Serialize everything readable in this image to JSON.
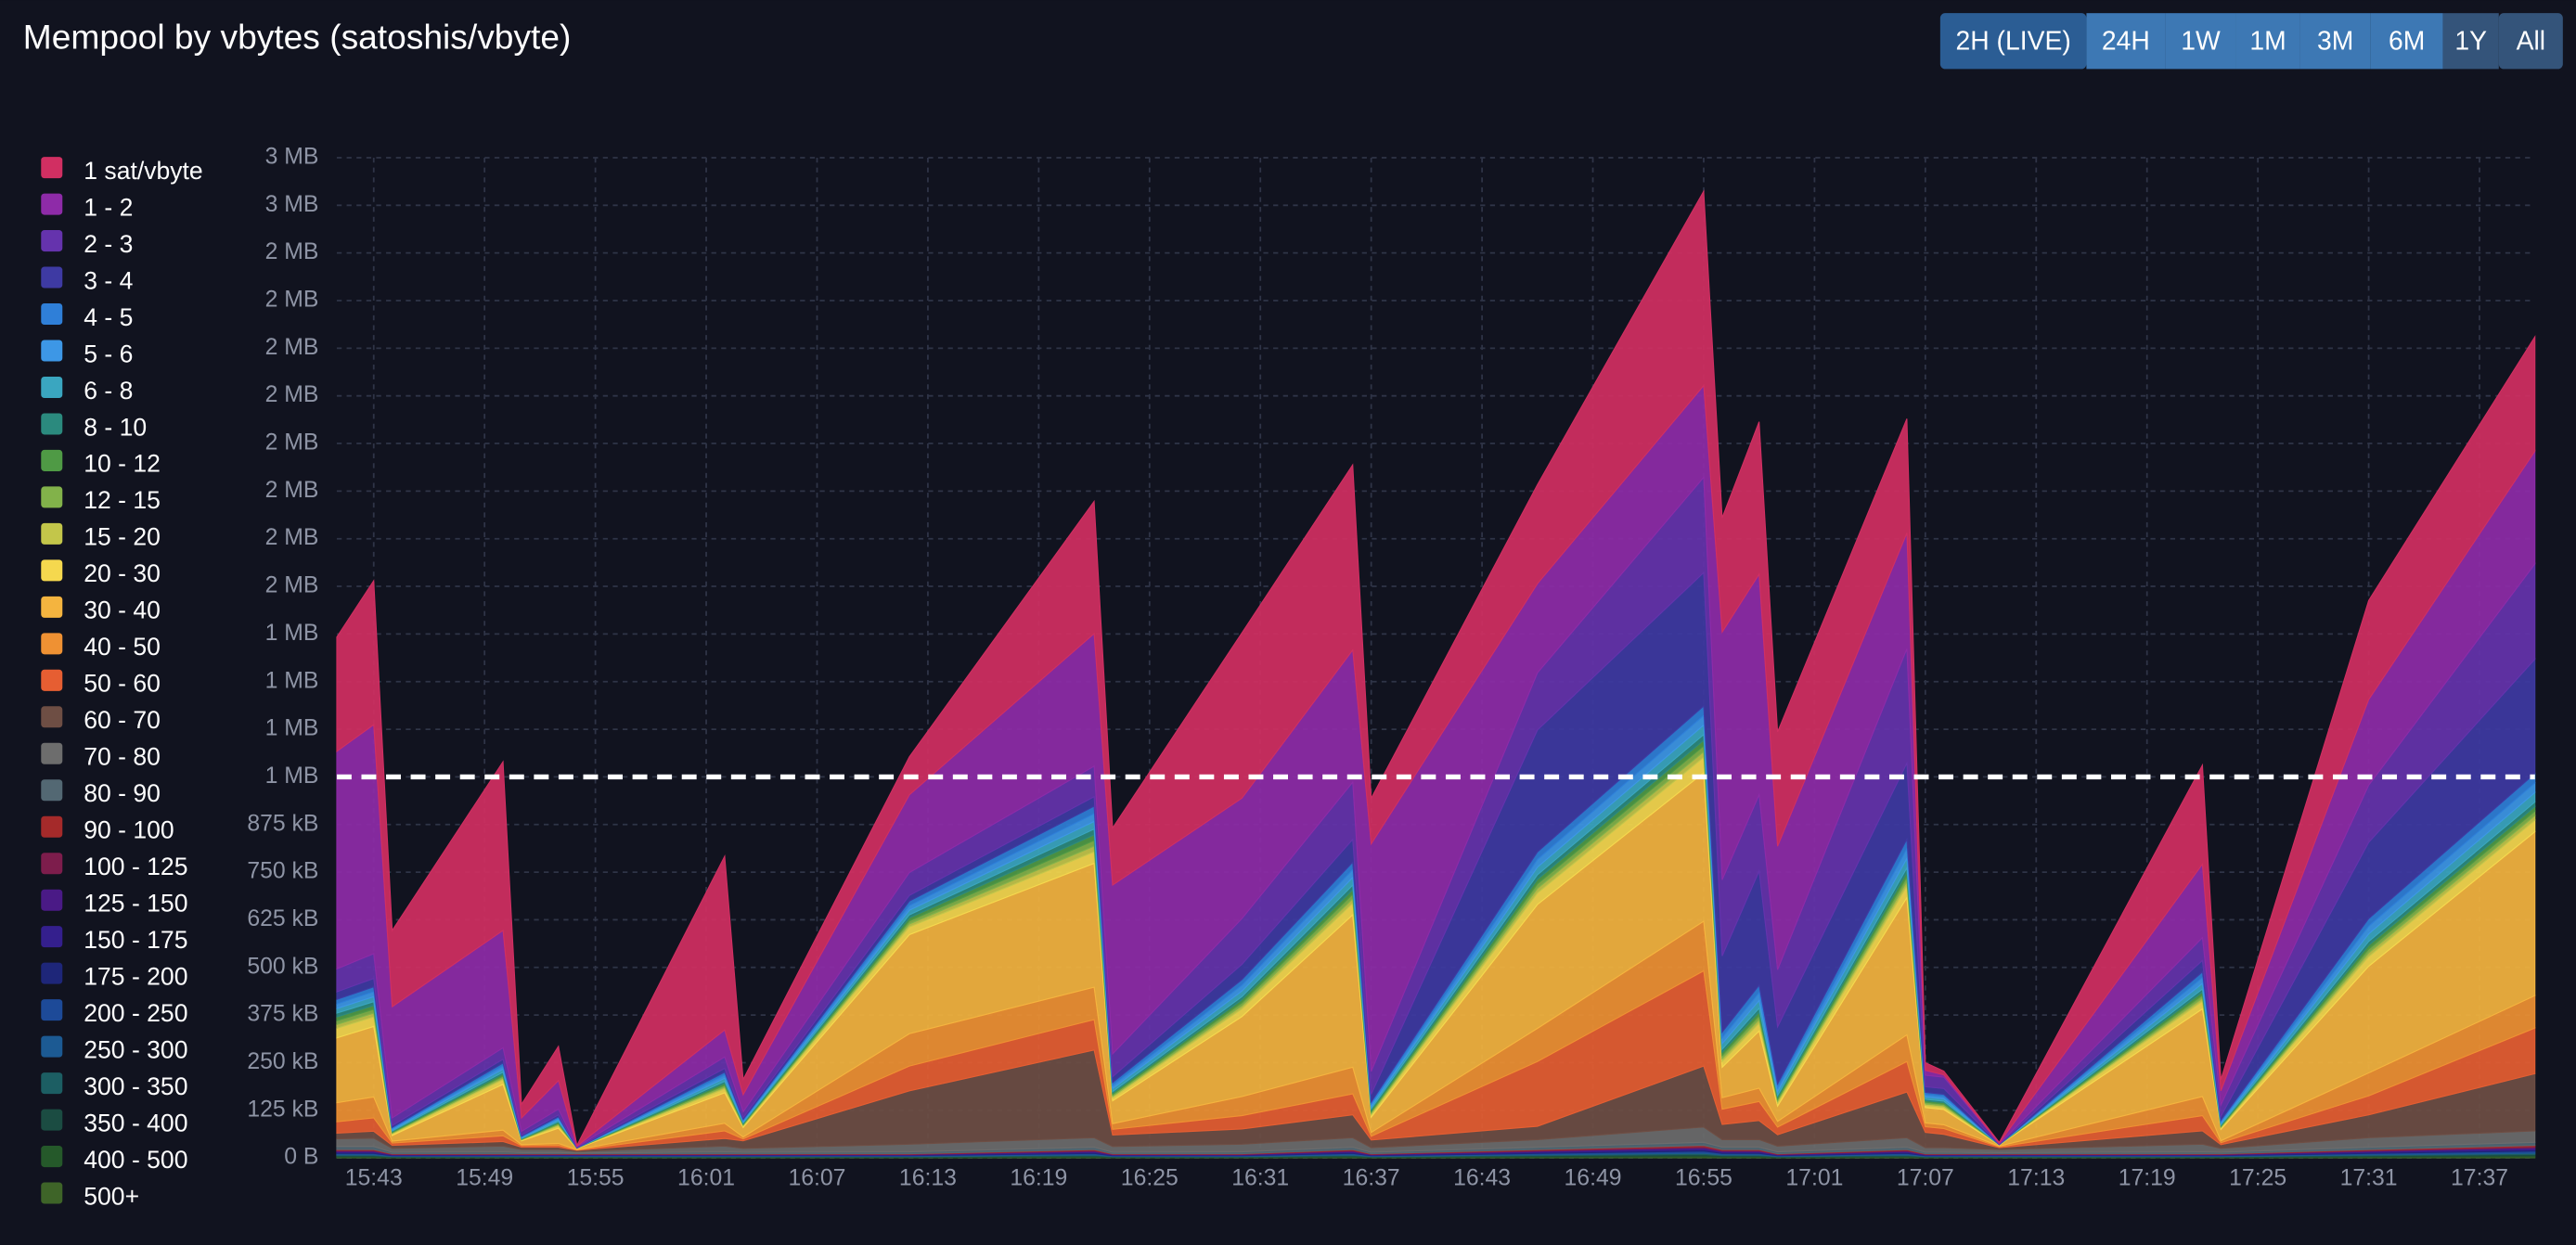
{
  "toolbar": {
    "buttons": [
      "2H (LIVE)",
      "24H",
      "1W",
      "1M",
      "3M",
      "6M",
      "1Y",
      "All"
    ]
  },
  "chart_data": {
    "type": "stacked-area",
    "title": "Mempool by vbytes (satoshis/vbyte)",
    "x": [
      "15:41",
      "15:43",
      "15:44",
      "15:50",
      "15:51",
      "15:53",
      "15:54",
      "16:02",
      "16:03",
      "16:12",
      "16:22",
      "16:23",
      "16:30",
      "16:36",
      "16:37",
      "16:46",
      "16:55",
      "16:56",
      "16:58",
      "16:59",
      "17:06",
      "17:07",
      "17:08",
      "17:11",
      "17:22",
      "17:23",
      "17:31",
      "17:40"
    ],
    "xlim": [
      "15:41",
      "17:40"
    ],
    "xticks": [
      "15:43",
      "15:49",
      "15:55",
      "16:01",
      "16:07",
      "16:13",
      "16:19",
      "16:25",
      "16:31",
      "16:37",
      "16:43",
      "16:49",
      "16:55",
      "17:01",
      "17:07",
      "17:13",
      "17:19",
      "17:25",
      "17:31",
      "17:37"
    ],
    "ylim": [
      0,
      2625
    ],
    "yticks": [
      {
        "value": 0,
        "label": "0 B"
      },
      {
        "value": 125,
        "label": "125 kB"
      },
      {
        "value": 250,
        "label": "250 kB"
      },
      {
        "value": 375,
        "label": "375 kB"
      },
      {
        "value": 500,
        "label": "500 kB"
      },
      {
        "value": 625,
        "label": "625 kB"
      },
      {
        "value": 750,
        "label": "750 kB"
      },
      {
        "value": 875,
        "label": "875 kB"
      },
      {
        "value": 1000,
        "label": "1 MB"
      },
      {
        "value": 1125,
        "label": "1 MB"
      },
      {
        "value": 1250,
        "label": "1 MB"
      },
      {
        "value": 1375,
        "label": "1 MB"
      },
      {
        "value": 1500,
        "label": "2 MB"
      },
      {
        "value": 1625,
        "label": "2 MB"
      },
      {
        "value": 1750,
        "label": "2 MB"
      },
      {
        "value": 1875,
        "label": "2 MB"
      },
      {
        "value": 2000,
        "label": "2 MB"
      },
      {
        "value": 2125,
        "label": "2 MB"
      },
      {
        "value": 2250,
        "label": "2 MB"
      },
      {
        "value": 2375,
        "label": "2 MB"
      },
      {
        "value": 2500,
        "label": "3 MB"
      },
      {
        "value": 2625,
        "label": "3 MB"
      }
    ],
    "grid": true,
    "mark_line": 1000,
    "series": [
      {
        "name": "1 sat/vbyte",
        "color": "#d12f62",
        "values": [
          300,
          378,
          200,
          443,
          36,
          90,
          2,
          456,
          40,
          100,
          347,
          150,
          434,
          486,
          120,
          260,
          510,
          300,
          400,
          300,
          300,
          20,
          10,
          2,
          260,
          30,
          260,
          300
        ]
      },
      {
        "name": "1 - 2",
        "color": "#8e2ba8",
        "values": [
          571,
          601,
          292,
          308,
          35,
          75,
          2,
          71,
          45,
          204,
          348,
          443,
          316,
          347,
          597,
          234,
          241,
          650,
          579,
          324,
          304,
          13,
          6,
          2,
          193,
          37,
          225,
          296
        ]
      },
      {
        "name": "2 - 3",
        "color": "#6533ad",
        "values": [
          60,
          65,
          20,
          30,
          10,
          15,
          2,
          30,
          15,
          60,
          80,
          60,
          120,
          150,
          60,
          150,
          250,
          200,
          200,
          150,
          300,
          30,
          30,
          1,
          60,
          30,
          150,
          250
        ]
      },
      {
        "name": "3 - 4",
        "color": "#3e3aa3",
        "values": [
          20,
          22,
          5,
          10,
          3,
          5,
          1,
          10,
          5,
          15,
          25,
          15,
          40,
          60,
          20,
          320,
          350,
          200,
          300,
          150,
          200,
          15,
          15,
          1,
          30,
          10,
          200,
          300
        ]
      },
      {
        "name": "4 - 5",
        "color": "#2f7fd8",
        "values": [
          12,
          13,
          3,
          8,
          2,
          4,
          0,
          8,
          3,
          12,
          20,
          8,
          15,
          20,
          6,
          20,
          25,
          15,
          20,
          10,
          25,
          6,
          6,
          0,
          15,
          4,
          20,
          25
        ]
      },
      {
        "name": "5 - 6",
        "color": "#3d97e6",
        "values": [
          12,
          13,
          3,
          8,
          2,
          4,
          0,
          8,
          3,
          12,
          20,
          8,
          15,
          20,
          6,
          20,
          25,
          15,
          20,
          10,
          25,
          6,
          6,
          0,
          15,
          4,
          20,
          25
        ]
      },
      {
        "name": "6 - 8",
        "color": "#3aa6c0",
        "values": [
          12,
          13,
          3,
          8,
          2,
          4,
          0,
          8,
          3,
          12,
          20,
          8,
          15,
          20,
          6,
          20,
          25,
          15,
          20,
          10,
          25,
          6,
          6,
          0,
          15,
          4,
          20,
          25
        ]
      },
      {
        "name": "8 - 10",
        "color": "#2b8a7e",
        "values": [
          10,
          10,
          2,
          5,
          1,
          3,
          0,
          5,
          2,
          8,
          15,
          4,
          8,
          12,
          4,
          12,
          15,
          8,
          10,
          5,
          12,
          4,
          4,
          0,
          8,
          2,
          10,
          12
        ]
      },
      {
        "name": "10 - 12",
        "color": "#4f9a45",
        "values": [
          10,
          10,
          2,
          5,
          1,
          3,
          0,
          5,
          2,
          8,
          15,
          4,
          8,
          12,
          4,
          12,
          15,
          8,
          10,
          5,
          12,
          4,
          4,
          0,
          8,
          2,
          10,
          12
        ]
      },
      {
        "name": "12 - 15",
        "color": "#82b24a",
        "values": [
          10,
          10,
          2,
          5,
          1,
          3,
          0,
          5,
          2,
          8,
          15,
          4,
          8,
          12,
          4,
          12,
          15,
          8,
          10,
          5,
          12,
          4,
          4,
          0,
          8,
          2,
          10,
          12
        ]
      },
      {
        "name": "15 - 20",
        "color": "#c3c64a",
        "values": [
          10,
          10,
          2,
          5,
          1,
          3,
          0,
          5,
          2,
          8,
          15,
          4,
          8,
          12,
          4,
          12,
          15,
          8,
          10,
          5,
          12,
          4,
          4,
          0,
          8,
          2,
          10,
          12
        ]
      },
      {
        "name": "20 - 30",
        "color": "#f5d84e",
        "values": [
          25,
          25,
          4,
          12,
          2,
          6,
          1,
          10,
          4,
          20,
          30,
          8,
          20,
          30,
          6,
          30,
          40,
          15,
          20,
          8,
          30,
          6,
          6,
          1,
          20,
          4,
          25,
          30
        ]
      },
      {
        "name": "30 - 40",
        "color": "#f4b43f",
        "values": [
          170,
          185,
          15,
          120,
          10,
          40,
          3,
          80,
          25,
          260,
          325,
          60,
          210,
          400,
          40,
          325,
          390,
          80,
          150,
          40,
          360,
          40,
          40,
          3,
          230,
          30,
          280,
          430
        ]
      },
      {
        "name": "40 - 50",
        "color": "#ef9133",
        "values": [
          50,
          55,
          5,
          15,
          3,
          5,
          1,
          20,
          5,
          85,
          85,
          15,
          50,
          70,
          10,
          87,
          130,
          30,
          35,
          15,
          70,
          10,
          10,
          2,
          50,
          5,
          60,
          85
        ]
      },
      {
        "name": "50 - 60",
        "color": "#e65e32",
        "values": [
          30,
          35,
          6,
          15,
          4,
          5,
          1,
          20,
          5,
          65,
          80,
          15,
          35,
          55,
          10,
          170,
          250,
          40,
          50,
          20,
          80,
          15,
          15,
          2,
          40,
          5,
          50,
          120
        ]
      },
      {
        "name": "60 - 70",
        "color": "#6e4e44",
        "values": [
          15,
          18,
          8,
          12,
          6,
          6,
          3,
          20,
          20,
          140,
          230,
          30,
          40,
          60,
          20,
          35,
          160,
          40,
          50,
          30,
          120,
          40,
          35,
          5,
          35,
          10,
          60,
          150
        ]
      },
      {
        "name": "70 - 80",
        "color": "#6d6d6d",
        "values": [
          20,
          22,
          10,
          15,
          8,
          8,
          4,
          15,
          10,
          20,
          25,
          15,
          20,
          25,
          12,
          20,
          40,
          20,
          20,
          15,
          25,
          12,
          12,
          8,
          20,
          10,
          25,
          30
        ]
      },
      {
        "name": "80 - 90",
        "color": "#536873",
        "values": [
          8,
          8,
          4,
          5,
          3,
          3,
          2,
          5,
          4,
          5,
          6,
          4,
          5,
          6,
          4,
          6,
          8,
          6,
          6,
          5,
          6,
          4,
          4,
          3,
          5,
          4,
          6,
          8
        ]
      },
      {
        "name": "90 - 100",
        "color": "#a52a2a",
        "values": [
          2,
          2,
          1,
          1,
          1,
          1,
          1,
          1,
          1,
          1,
          2,
          1,
          1,
          2,
          1,
          2,
          3,
          2,
          2,
          1,
          2,
          1,
          1,
          1,
          1,
          1,
          2,
          3
        ]
      },
      {
        "name": "100 - 125",
        "color": "#7d1d4c",
        "values": [
          2,
          2,
          1,
          1,
          1,
          1,
          1,
          1,
          1,
          1,
          2,
          1,
          1,
          2,
          1,
          2,
          3,
          2,
          2,
          1,
          2,
          1,
          1,
          1,
          1,
          1,
          2,
          3
        ]
      },
      {
        "name": "125 - 150",
        "color": "#4a1a86",
        "values": [
          2,
          2,
          1,
          1,
          1,
          1,
          1,
          1,
          1,
          1,
          2,
          1,
          1,
          2,
          1,
          2,
          3,
          2,
          2,
          1,
          2,
          1,
          1,
          1,
          1,
          1,
          2,
          3
        ]
      },
      {
        "name": "150 - 175",
        "color": "#341f8d",
        "values": [
          2,
          2,
          1,
          1,
          1,
          1,
          1,
          1,
          1,
          1,
          2,
          1,
          1,
          2,
          1,
          2,
          3,
          2,
          2,
          1,
          2,
          1,
          1,
          1,
          1,
          1,
          2,
          3
        ]
      },
      {
        "name": "175 - 200",
        "color": "#1e2679",
        "values": [
          2,
          2,
          1,
          1,
          1,
          1,
          1,
          1,
          1,
          1,
          2,
          1,
          1,
          2,
          1,
          2,
          3,
          2,
          2,
          1,
          2,
          1,
          1,
          1,
          1,
          1,
          2,
          3
        ]
      },
      {
        "name": "200 - 250",
        "color": "#1d4a98",
        "values": [
          2,
          2,
          1,
          1,
          1,
          1,
          1,
          1,
          1,
          1,
          2,
          1,
          1,
          2,
          1,
          2,
          3,
          2,
          2,
          1,
          2,
          1,
          1,
          1,
          1,
          1,
          2,
          3
        ]
      },
      {
        "name": "250 - 300",
        "color": "#1c5a93",
        "values": [
          2,
          2,
          1,
          1,
          1,
          1,
          1,
          1,
          1,
          1,
          2,
          1,
          1,
          2,
          1,
          2,
          3,
          2,
          2,
          1,
          2,
          1,
          1,
          1,
          1,
          1,
          2,
          3
        ]
      },
      {
        "name": "300 - 350",
        "color": "#1c5e63",
        "values": [
          2,
          2,
          1,
          1,
          1,
          1,
          1,
          1,
          1,
          1,
          2,
          1,
          1,
          2,
          1,
          2,
          3,
          2,
          2,
          1,
          2,
          1,
          1,
          1,
          1,
          1,
          2,
          3
        ]
      },
      {
        "name": "350 - 400",
        "color": "#1b4c42",
        "values": [
          2,
          2,
          1,
          1,
          1,
          1,
          1,
          1,
          1,
          1,
          2,
          1,
          1,
          2,
          1,
          2,
          3,
          2,
          2,
          1,
          2,
          1,
          1,
          1,
          1,
          1,
          2,
          3
        ]
      },
      {
        "name": "400 - 500",
        "color": "#25592a",
        "values": [
          2,
          2,
          1,
          1,
          1,
          1,
          1,
          1,
          1,
          1,
          2,
          1,
          1,
          2,
          1,
          2,
          3,
          2,
          2,
          1,
          2,
          1,
          1,
          1,
          1,
          1,
          2,
          3
        ]
      },
      {
        "name": "500+",
        "color": "#3e6428",
        "values": [
          2,
          2,
          1,
          1,
          1,
          1,
          1,
          1,
          1,
          1,
          2,
          1,
          1,
          2,
          1,
          2,
          3,
          2,
          2,
          1,
          2,
          1,
          1,
          1,
          1,
          1,
          2,
          3
        ]
      }
    ]
  }
}
